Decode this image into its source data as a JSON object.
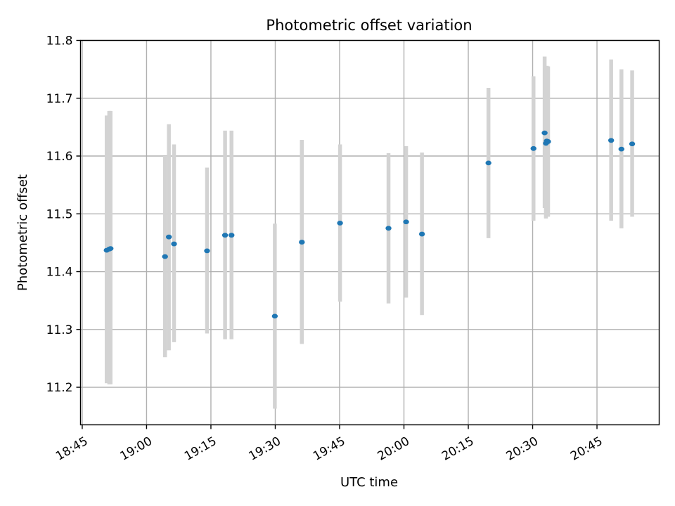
{
  "chart_data": {
    "type": "scatter",
    "title": "Photometric offset variation",
    "xlabel": "UTC time",
    "ylabel": "Photometric offset",
    "x_axis": {
      "kind": "time",
      "ticks": [
        "18:45",
        "19:00",
        "19:15",
        "19:30",
        "19:45",
        "20:00",
        "20:15",
        "20:30",
        "20:45"
      ],
      "tick_labels_rotated": true,
      "range": [
        "18:44:36",
        "20:59:30"
      ]
    },
    "y_axis": {
      "ticks": [
        "11.2",
        "11.3",
        "11.4",
        "11.5",
        "11.6",
        "11.7",
        "11.8"
      ],
      "ylim": [
        11.135,
        11.8
      ]
    },
    "grid": true,
    "colors": {
      "point": "#1f77b4",
      "errorbar": "#d3d3d3"
    },
    "series": [
      {
        "points": [
          {
            "x": "18:50:42",
            "y": 11.437,
            "ymin": 11.207,
            "ymax": 11.67
          },
          {
            "x": "18:51:18",
            "y": 11.439,
            "ymin": 11.205,
            "ymax": 11.678
          },
          {
            "x": "18:51:36",
            "y": 11.44,
            "ymin": 11.205,
            "ymax": 11.678
          },
          {
            "x": "19:04:18",
            "y": 11.426,
            "ymin": 11.252,
            "ymax": 11.6
          },
          {
            "x": "19:05:12",
            "y": 11.46,
            "ymin": 11.264,
            "ymax": 11.655
          },
          {
            "x": "19:06:24",
            "y": 11.448,
            "ymin": 11.278,
            "ymax": 11.62
          },
          {
            "x": "19:14:06",
            "y": 11.436,
            "ymin": 11.293,
            "ymax": 11.58
          },
          {
            "x": "19:18:18",
            "y": 11.463,
            "ymin": 11.283,
            "ymax": 11.644
          },
          {
            "x": "19:19:48",
            "y": 11.463,
            "ymin": 11.283,
            "ymax": 11.644
          },
          {
            "x": "19:29:54",
            "y": 11.323,
            "ymin": 11.163,
            "ymax": 11.483
          },
          {
            "x": "19:36:12",
            "y": 11.451,
            "ymin": 11.275,
            "ymax": 11.628
          },
          {
            "x": "19:45:06",
            "y": 11.484,
            "ymin": 11.348,
            "ymax": 11.62
          },
          {
            "x": "19:56:24",
            "y": 11.475,
            "ymin": 11.345,
            "ymax": 11.605
          },
          {
            "x": "20:00:30",
            "y": 11.486,
            "ymin": 11.355,
            "ymax": 11.617
          },
          {
            "x": "20:04:12",
            "y": 11.465,
            "ymin": 11.325,
            "ymax": 11.606
          },
          {
            "x": "20:19:42",
            "y": 11.588,
            "ymin": 11.458,
            "ymax": 11.718
          },
          {
            "x": "20:30:12",
            "y": 11.613,
            "ymin": 11.488,
            "ymax": 11.738
          },
          {
            "x": "20:32:48",
            "y": 11.64,
            "ymin": 11.51,
            "ymax": 11.772
          },
          {
            "x": "20:33:06",
            "y": 11.622,
            "ymin": 11.492,
            "ymax": 11.752
          },
          {
            "x": "20:33:18",
            "y": 11.626,
            "ymin": 11.496,
            "ymax": 11.756
          },
          {
            "x": "20:33:36",
            "y": 11.625,
            "ymin": 11.495,
            "ymax": 11.755
          },
          {
            "x": "20:48:18",
            "y": 11.627,
            "ymin": 11.488,
            "ymax": 11.767
          },
          {
            "x": "20:50:42",
            "y": 11.612,
            "ymin": 11.475,
            "ymax": 11.75
          },
          {
            "x": "20:53:12",
            "y": 11.621,
            "ymin": 11.495,
            "ymax": 11.748
          }
        ]
      }
    ]
  }
}
